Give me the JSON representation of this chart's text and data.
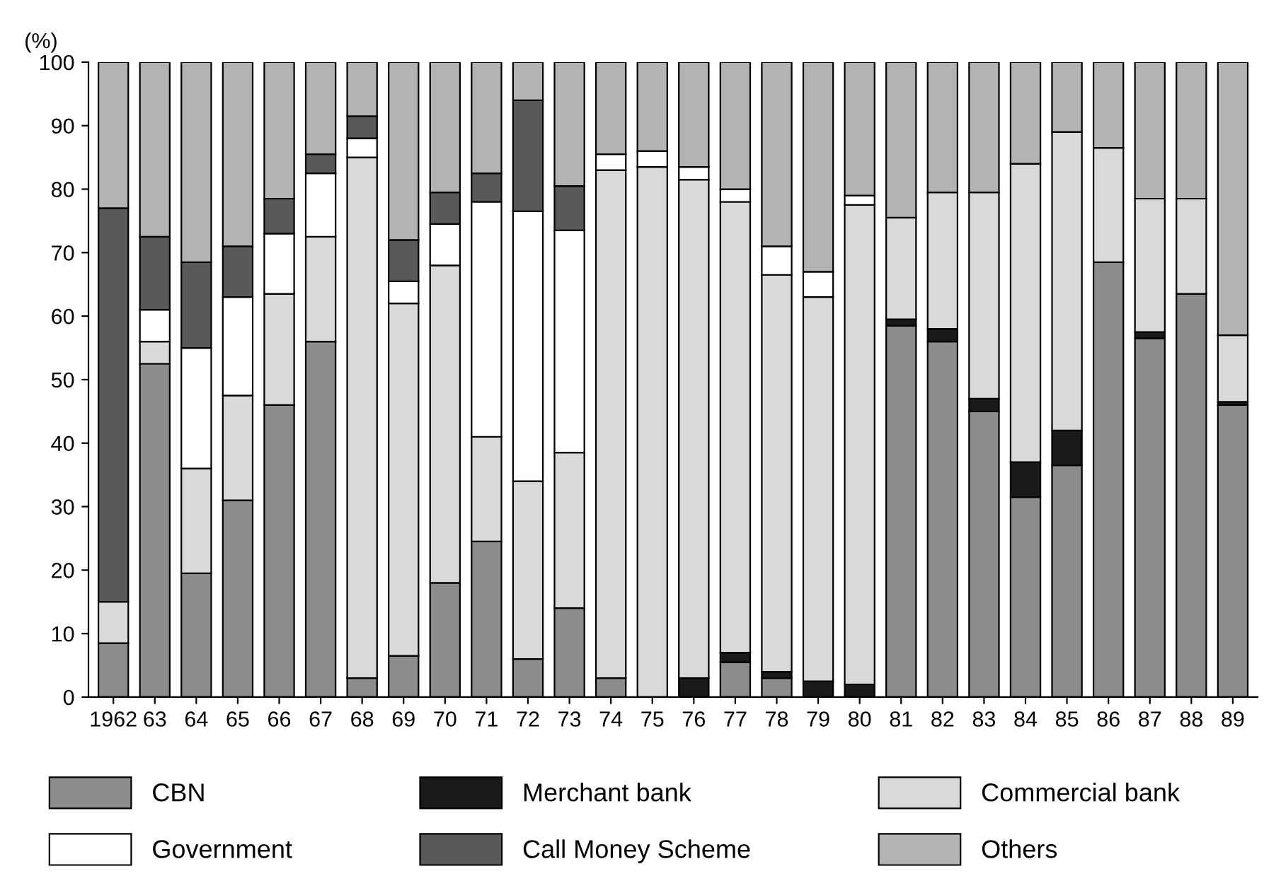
{
  "chart_data": {
    "type": "bar",
    "stacked": true,
    "ylabel": "(%)",
    "categories": [
      "1962",
      "63",
      "64",
      "65",
      "66",
      "67",
      "68",
      "69",
      "70",
      "71",
      "72",
      "73",
      "74",
      "75",
      "76",
      "77",
      "78",
      "79",
      "80",
      "81",
      "82",
      "83",
      "84",
      "85",
      "86",
      "87",
      "88",
      "89"
    ],
    "series": [
      {
        "name": "CBN",
        "color": "#8c8c8c",
        "values": [
          8.5,
          52.5,
          19.5,
          31,
          46,
          56,
          3,
          6.5,
          18,
          24.5,
          6,
          14,
          3,
          0,
          0,
          5.5,
          3,
          0,
          0,
          58.5,
          56,
          45,
          31.5,
          36.5,
          68.5,
          56.5,
          63.5,
          46
        ]
      },
      {
        "name": "Merchant bank",
        "color": "#1a1a1a",
        "values": [
          0,
          0,
          0,
          0,
          0,
          0,
          0,
          0,
          0,
          0,
          0,
          0,
          0,
          0,
          3,
          1.5,
          1,
          2.5,
          2,
          1,
          2,
          2,
          5.5,
          5.5,
          0,
          1,
          0,
          0.5
        ]
      },
      {
        "name": "Commercial bank",
        "color": "#d9d9d9",
        "values": [
          6.5,
          3.5,
          16.5,
          16.5,
          17.5,
          16.5,
          82,
          55.5,
          50,
          16.5,
          28,
          24.5,
          80,
          83.5,
          78.5,
          71,
          62.5,
          60.5,
          75.5,
          16,
          21.5,
          32.5,
          47,
          47,
          18,
          21,
          15,
          10.5
        ]
      },
      {
        "name": "Government",
        "color": "#ffffff",
        "values": [
          0,
          5,
          19,
          15.5,
          9.5,
          10,
          3,
          3.5,
          6.5,
          37,
          42.5,
          35,
          2.5,
          2.5,
          2,
          2,
          4.5,
          4,
          1.5,
          0,
          0,
          0,
          0,
          0,
          0,
          0,
          0,
          0
        ]
      },
      {
        "name": "Call Money Scheme",
        "color": "#595959",
        "values": [
          62,
          11.5,
          13.5,
          8,
          5.5,
          3,
          3.5,
          6.5,
          5,
          4.5,
          17.5,
          7,
          0,
          0,
          0,
          0,
          0,
          0,
          0,
          0,
          0,
          0,
          0,
          0,
          0,
          0,
          0,
          0
        ]
      },
      {
        "name": "Others",
        "color": "#b3b3b3",
        "values": [
          23,
          27.5,
          31.5,
          29,
          21.5,
          14.5,
          8.5,
          28,
          20.5,
          17.5,
          6,
          19.5,
          14.5,
          14,
          16.5,
          20,
          29,
          33,
          21,
          24.5,
          20.5,
          20.5,
          16,
          11,
          13.5,
          21.5,
          21.5,
          43
        ]
      }
    ],
    "ylim": [
      0,
      100
    ],
    "yticks": [
      0,
      10,
      20,
      30,
      40,
      50,
      60,
      70,
      80,
      90,
      100
    ],
    "grid": false,
    "legend": "bottom"
  }
}
